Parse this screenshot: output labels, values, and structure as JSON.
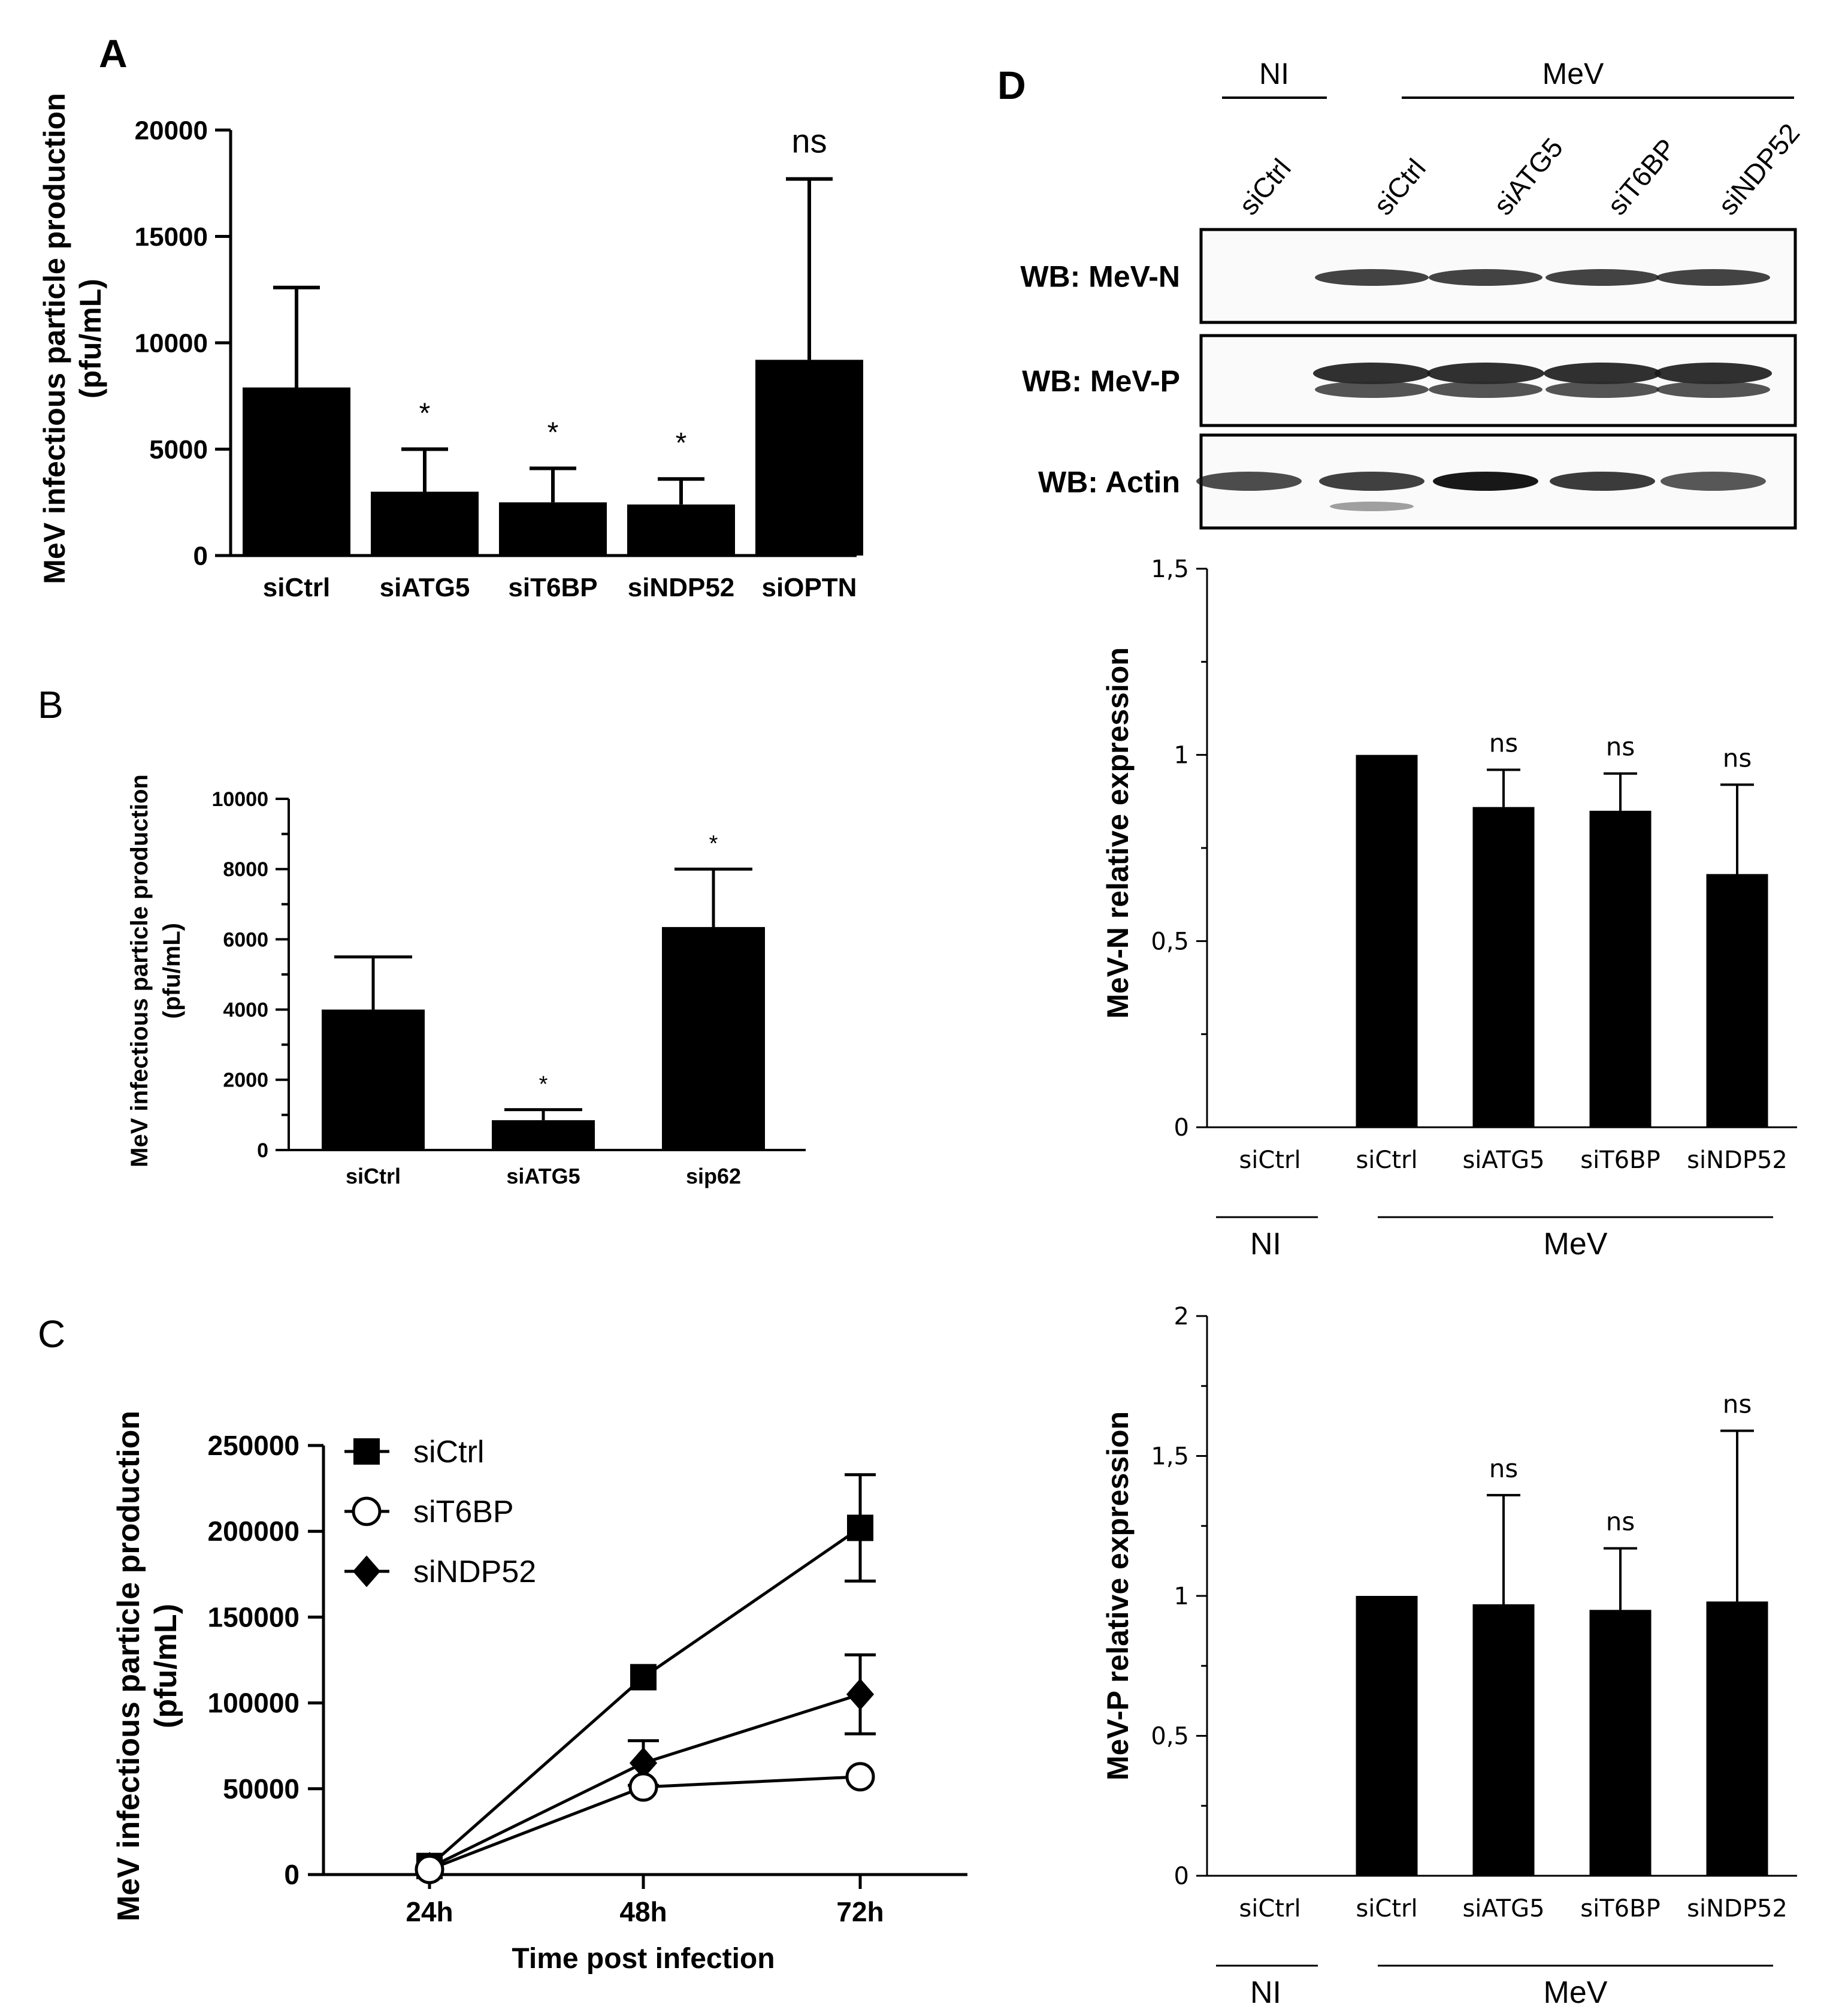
{
  "panels": {
    "A": {
      "letter": "A",
      "chart_data": {
        "type": "bar",
        "title": "",
        "ylabel_line1": "MeV infectious particle production",
        "ylabel_line2": "(pfu/mL)",
        "xlabel": "",
        "categories": [
          "siCtrl",
          "siATG5",
          "siT6BP",
          "siNDP52",
          "siOPTN"
        ],
        "values": [
          7900,
          3000,
          2500,
          2400,
          9200
        ],
        "errors": [
          4700,
          2000,
          1600,
          1200,
          8500
        ],
        "annotations": [
          "",
          "*",
          "*",
          "*",
          "ns"
        ],
        "ylim": [
          0,
          20000
        ],
        "yticks": [
          0,
          5000,
          10000,
          15000,
          20000
        ],
        "ytick_labels": [
          "0",
          "5000",
          "10000",
          "15000",
          "20000"
        ]
      }
    },
    "B": {
      "letter": "B",
      "chart_data": {
        "type": "bar",
        "title": "",
        "ylabel_line1": "MeV infectious particle production",
        "ylabel_line2": "(pfu/mL)",
        "xlabel": "",
        "categories": [
          "siCtrl",
          "siATG5",
          "sip62"
        ],
        "values": [
          4000,
          850,
          6350
        ],
        "errors": [
          1500,
          300,
          1650
        ],
        "annotations": [
          "",
          "*",
          "*"
        ],
        "ylim": [
          0,
          10000
        ],
        "yticks": [
          0,
          2000,
          4000,
          6000,
          8000,
          10000
        ],
        "ytick_labels": [
          "0",
          "2000",
          "4000",
          "6000",
          "8000",
          "10000"
        ]
      }
    },
    "C": {
      "letter": "C",
      "chart_data": {
        "type": "line",
        "title": "",
        "ylabel_line1": "MeV infectious particle production",
        "ylabel_line2": "(pfu/mL)",
        "xlabel": "Time post infection",
        "categories": [
          "24h",
          "48h",
          "72h"
        ],
        "series": [
          {
            "name": "siCtrl",
            "marker": "square",
            "values": [
              5000,
              115000,
              202000
            ],
            "errors": [
              0,
              0,
              31000
            ]
          },
          {
            "name": "siT6BP",
            "marker": "open-circle",
            "values": [
              3000,
              51000,
              57000
            ],
            "errors": [
              0,
              0,
              0
            ]
          },
          {
            "name": "siNDP52",
            "marker": "diamond",
            "values": [
              4000,
              65000,
              105000
            ],
            "errors": [
              0,
              13000,
              23000
            ]
          }
        ],
        "ylim": [
          0,
          250000
        ],
        "yticks": [
          0,
          50000,
          100000,
          150000,
          200000,
          250000
        ],
        "ytick_labels": [
          "0",
          "50000",
          "100000",
          "150000",
          "200000",
          "250000"
        ]
      }
    },
    "D": {
      "letter": "D",
      "blot": {
        "group_ni": "NI",
        "group_mev": "MeV",
        "lanes": [
          "siCtrl",
          "siCtrl",
          "siATG5",
          "siT6BP",
          "siNDP52"
        ],
        "rows": [
          "WB: MeV-N",
          "WB: MeV-P",
          "WB: Actin"
        ]
      },
      "chart_data": [
        {
          "type": "bar",
          "title": "",
          "ylabel": "MeV-N relative expression",
          "xlabel": "",
          "categories": [
            "siCtrl",
            "siCtrl",
            "siATG5",
            "siT6BP",
            "siNDP52"
          ],
          "values": [
            0,
            1,
            0.86,
            0.85,
            0.68
          ],
          "errors": [
            0,
            0,
            0.1,
            0.1,
            0.24
          ],
          "annotations": [
            "",
            "",
            "ns",
            "ns",
            "ns"
          ],
          "ylim": [
            0,
            1.5
          ],
          "yticks": [
            0,
            0.5,
            1,
            1.5
          ],
          "ytick_labels": [
            "0",
            "0,5",
            "1",
            "1,5"
          ],
          "group_ni": "NI",
          "group_mev": "MeV"
        },
        {
          "type": "bar",
          "title": "",
          "ylabel": "MeV-P relative expression",
          "xlabel": "",
          "categories": [
            "siCtrl",
            "siCtrl",
            "siATG5",
            "siT6BP",
            "siNDP52"
          ],
          "values": [
            0,
            1,
            0.97,
            0.95,
            0.98
          ],
          "errors": [
            0,
            0,
            0.39,
            0.22,
            0.61
          ],
          "annotations": [
            "",
            "",
            "ns",
            "ns",
            "ns"
          ],
          "ylim": [
            0,
            2
          ],
          "yticks": [
            0,
            0.5,
            1,
            1.5,
            2
          ],
          "ytick_labels": [
            "0",
            "0,5",
            "1",
            "1,5",
            "2"
          ],
          "group_ni": "NI",
          "group_mev": "MeV"
        }
      ]
    }
  }
}
